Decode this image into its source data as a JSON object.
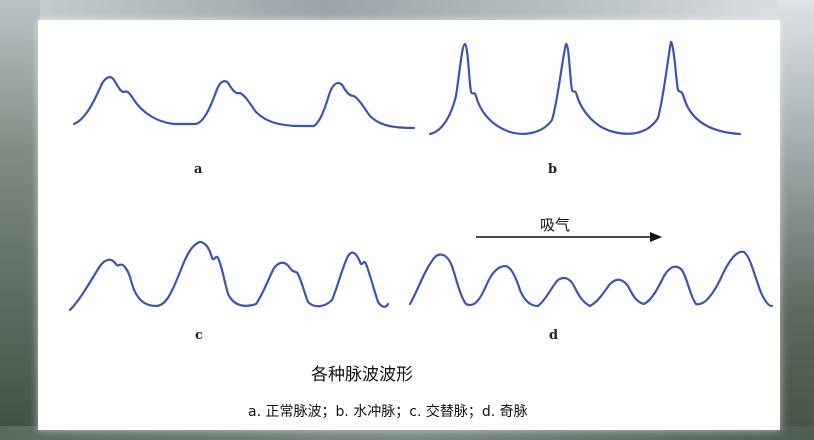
{
  "figure": {
    "panels": [
      {
        "label": "a"
      },
      {
        "label": "b"
      },
      {
        "label": "c"
      },
      {
        "label": "d",
        "annotation": "吸气"
      }
    ],
    "title": "各种脉波波形",
    "legend": "a. 正常脉波；b. 水冲脉；c. 交替脉；d. 奇脉"
  },
  "colors": {
    "wave": "#3c55b0",
    "card": "#ffffff"
  }
}
